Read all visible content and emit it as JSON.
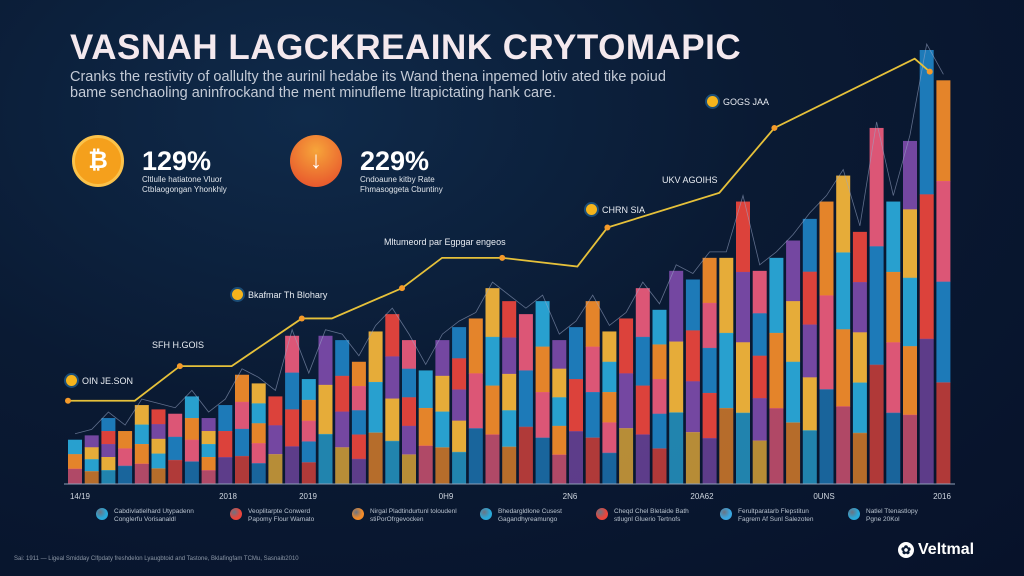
{
  "header": {
    "title": "VASNAH LAGCKREAINK CRYTOMAPIC",
    "subtitle": "Cranks the restivity of oallulty the aurinil hedabe its Wand thena inpemed lotiv ated tike poiud bame senchaoling aninfrockand the ment minufleme ltrapictating hank care."
  },
  "stats": [
    {
      "value": "129%",
      "caption_1": "Cltlulle hatiatone Vluor",
      "caption_2": "Ctblaogongan Yhonkhly",
      "icon": "bitcoin-coin-icon",
      "color": "#f5a01c"
    },
    {
      "value": "229%",
      "caption_1": "Cndoaune kitby Rate",
      "caption_2": "Fhmasoggeta Cbuntiny",
      "icon": "arrow-down-icon",
      "color": "#ef5a24"
    }
  ],
  "chart_data": {
    "type": "bar",
    "title": "",
    "xlabel": "",
    "ylabel": "",
    "values": [
      10,
      11,
      15,
      12,
      18,
      17,
      16,
      20,
      15,
      18,
      25,
      23,
      20,
      34,
      24,
      34,
      33,
      28,
      35,
      39,
      33,
      26,
      33,
      36,
      38,
      45,
      42,
      39,
      42,
      33,
      36,
      42,
      35,
      38,
      45,
      40,
      49,
      47,
      52,
      52,
      65,
      49,
      52,
      56,
      61,
      65,
      71,
      58,
      82,
      65,
      79,
      100,
      93
    ],
    "trend_line": {
      "x_index": [
        0,
        4,
        6.7,
        9.8,
        14,
        15.8,
        20,
        22.4,
        26,
        30.5,
        32.3,
        39,
        42.3,
        50.7,
        51.6
      ],
      "y": [
        19,
        19,
        27,
        27,
        38,
        38,
        45,
        52,
        52,
        50,
        59,
        67,
        82,
        98,
        95
      ],
      "color": "#e6c13a"
    },
    "bar_colors": [
      "#2aa8d8",
      "#e8453c",
      "#f08a2a",
      "#7a4aa8",
      "#e85a7a",
      "#f2b43a",
      "#1f7fc0"
    ],
    "x_tick_labels": [
      "14/19",
      "2018",
      "2019",
      "0H9",
      "2N6",
      "20A62",
      "0UNS",
      "2016"
    ],
    "annotations": [
      "OIN JE.SON",
      "SFH  H.GOIS",
      "Bkafmar Th Blohary",
      "Mltumeord par Egpgar engeos",
      "CHRN SIA",
      "UKV AGOIHS",
      "GOGS JAA"
    ],
    "legend": [
      {
        "line1": "Cabdivlatlelhard Utypadenn",
        "line2": "Conglerfu Vorisanaldl",
        "color": "#2aa8d8"
      },
      {
        "line1": "Veoplitarpte Conwerd",
        "line2": "Papomy Flour Wamato",
        "color": "#e8453c"
      },
      {
        "line1": "Nirgal Pladtindurtunl toloudenl",
        "line2": "stiPorOfrgevocken",
        "color": "#f08a2a"
      },
      {
        "line1": "Bhedargldlone Cusest",
        "line2": "Gagandhyreamungo",
        "color": "#2aa8d8"
      },
      {
        "line1": "Cheqd Chel Bletaide Bath",
        "line2": "stlugnl Gluerio Tertnofs",
        "color": "#e8453c"
      },
      {
        "line1": "Ferultparatarb Flepstitun",
        "line2": "Fagrem Af Sunl Salezoten",
        "color": "#3aa6e0"
      },
      {
        "line1": "Natlel Ttenastlopy",
        "line2": "Pgne 20Kol",
        "color": "#2aa8d8"
      }
    ],
    "grid": false,
    "legend_placement": "bottom"
  },
  "footer": {
    "source": "Sai: 1911 — Ligeal Smidday Clfpdaty freshdelon Lyaugbtoid and Tastone, Bklafingfam TCMu, Sasnaib2010",
    "brand": "Veltmal"
  }
}
